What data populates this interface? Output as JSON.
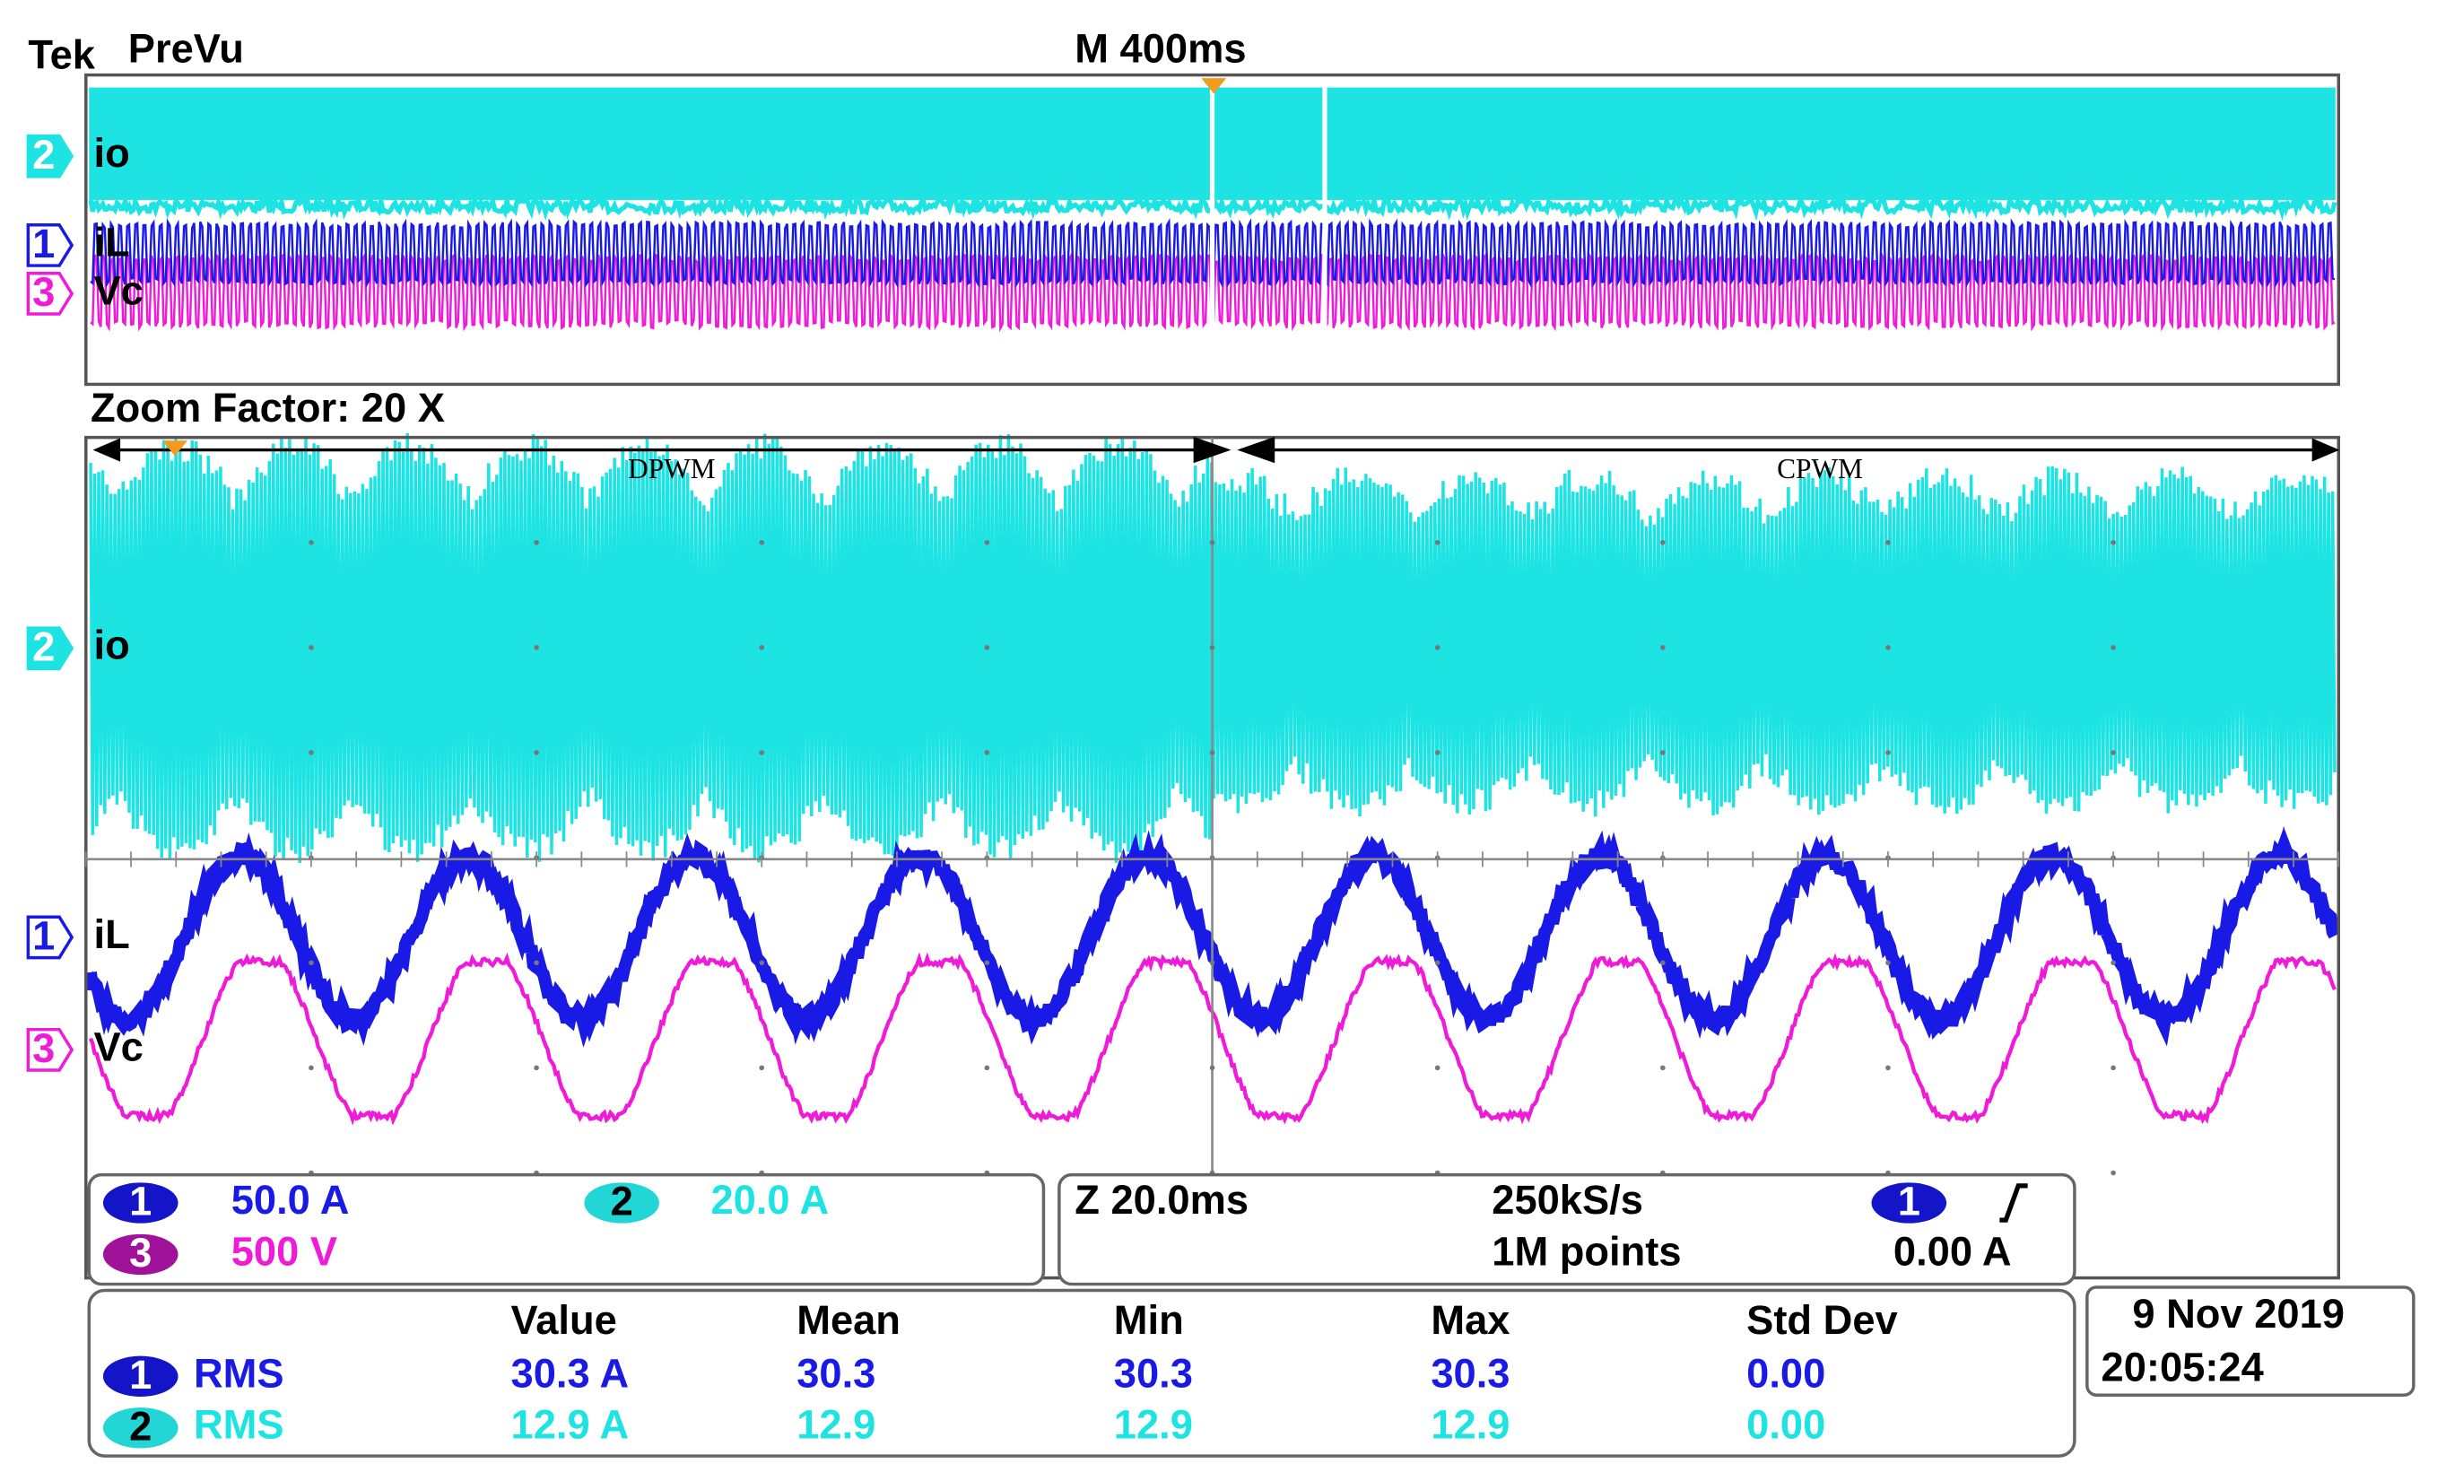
{
  "header": {
    "brand": "Tek",
    "mode": "PreVu",
    "timebase": "M 400ms"
  },
  "overview": {
    "channels": [
      {
        "number": 2,
        "label": "io"
      },
      {
        "number": 1,
        "label": "iL"
      },
      {
        "number": 3,
        "label": "Vc"
      }
    ]
  },
  "zoom": {
    "label": "Zoom Factor: 20 X",
    "regions": [
      "DPWM",
      "CPWM"
    ],
    "channels": [
      {
        "number": 2,
        "label": "io"
      },
      {
        "number": 1,
        "label": "iL"
      },
      {
        "number": 3,
        "label": "Vc"
      }
    ]
  },
  "channel_settings": [
    {
      "number": 1,
      "scale": "50.0 A"
    },
    {
      "number": 2,
      "scale": "20.0 A"
    },
    {
      "number": 3,
      "scale": "500 V"
    }
  ],
  "acquisition": {
    "zoom_time": "Z 20.0ms",
    "sample_rate": "250kS/s",
    "record_length": "1M points",
    "trigger_channel": 1,
    "trigger_level": "0.00 A"
  },
  "measurements": {
    "columns": [
      "Value",
      "Mean",
      "Min",
      "Max",
      "Std Dev"
    ],
    "rows": [
      {
        "channel": 1,
        "type": "RMS",
        "values": [
          "30.3 A",
          "30.3",
          "30.3",
          "30.3",
          "0.00"
        ]
      },
      {
        "channel": 2,
        "type": "RMS",
        "values": [
          "12.9 A",
          "12.9",
          "12.9",
          "12.9",
          "0.00"
        ]
      }
    ]
  },
  "timestamp": {
    "date": "9 Nov 2019",
    "time": "20:05:24"
  }
}
